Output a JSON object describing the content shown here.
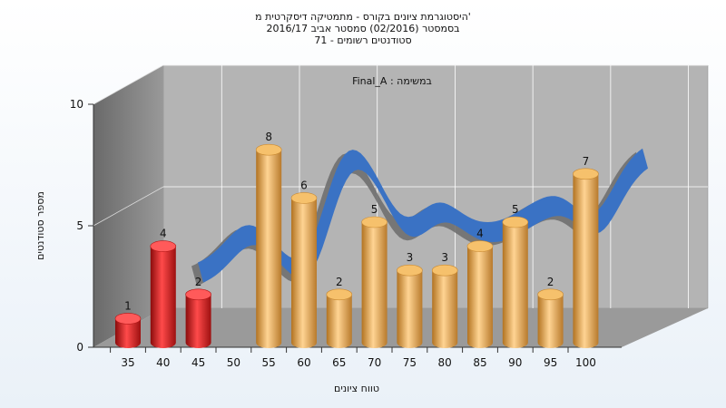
{
  "title": {
    "line1": "היסטוגרמת ציונים בקורס - מתמטיקה דיסקרטית מ'",
    "line2": "בסמסטר  (02/2016)  סמסטר אביב 2016/17",
    "line3": "סטודנטים רשומים - 71"
  },
  "chart_data": {
    "type": "bar",
    "subtitle": "Final_A : במשימה",
    "xlabel": "טווח ציונים",
    "ylabel": "מספר סטודנטים",
    "ylim": [
      0,
      10
    ],
    "yticks": [
      "0",
      "5",
      "10"
    ],
    "grid": true,
    "categories": [
      "35",
      "40",
      "45",
      "50",
      "55",
      "60",
      "65",
      "70",
      "75",
      "80",
      "85",
      "90",
      "95",
      "100"
    ],
    "series": [
      {
        "values": [
          1,
          4,
          2,
          null,
          8,
          6,
          2,
          5,
          3,
          3,
          4,
          5,
          2,
          7
        ],
        "labels": [
          "1",
          "4",
          "2",
          "",
          "8",
          "6",
          "2",
          "5",
          "3",
          "3",
          "4",
          "5",
          "2",
          "7"
        ],
        "colors": [
          "#e41b1b",
          "#e41b1b",
          "#e41b1b",
          "",
          "#e6a545",
          "#e6a545",
          "#e6a545",
          "#e6a545",
          "#e6a545",
          "#e6a545",
          "#e6a545",
          "#e6a545",
          "#e6a545",
          "#e6a545"
        ]
      }
    ],
    "curve_color": "#3a72c4",
    "wall_color": "#b4b4b4"
  }
}
